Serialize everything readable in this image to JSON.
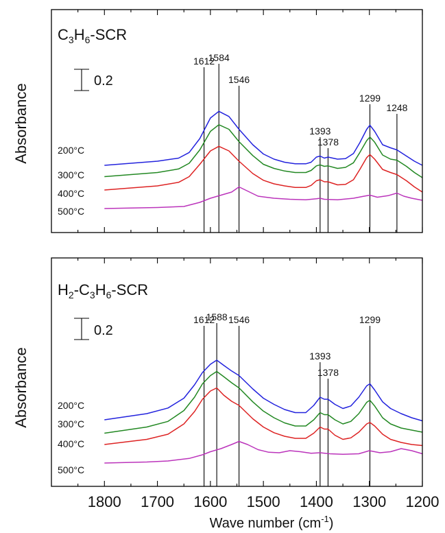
{
  "chart_data": [
    {
      "type": "line",
      "title": {
        "parts": [
          {
            "t": "C",
            "sub": false
          },
          {
            "t": "3",
            "sub": true
          },
          {
            "t": "H",
            "sub": false
          },
          {
            "t": "6",
            "sub": true
          },
          {
            "t": "-SCR",
            "sub": false
          }
        ]
      },
      "ylabel": "Absorbance",
      "scale_bar_label": "0.2",
      "xlim": [
        1900,
        1200
      ],
      "peak_labels": [
        "1612",
        "1584",
        "1546",
        "1393",
        "1378",
        "1299",
        "1248"
      ],
      "peak_positions": [
        1612,
        1584,
        1546,
        1393,
        1378,
        1299,
        1248
      ],
      "series": [
        {
          "name": "200°C",
          "color": "#2222dd",
          "x": [
            1800,
            1700,
            1660,
            1640,
            1620,
            1600,
            1584,
            1565,
            1546,
            1520,
            1500,
            1480,
            1460,
            1440,
            1420,
            1410,
            1400,
            1393,
            1385,
            1378,
            1360,
            1345,
            1330,
            1318,
            1305,
            1299,
            1290,
            1275,
            1260,
            1248,
            1230,
            1215,
            1200
          ],
          "y": [
            1.0,
            1.08,
            1.14,
            1.25,
            1.52,
            1.92,
            2.05,
            1.95,
            1.7,
            1.4,
            1.22,
            1.12,
            1.06,
            1.03,
            1.03,
            1.06,
            1.16,
            1.18,
            1.14,
            1.16,
            1.12,
            1.13,
            1.23,
            1.44,
            1.7,
            1.78,
            1.66,
            1.4,
            1.34,
            1.3,
            1.18,
            1.08,
            1.0
          ]
        },
        {
          "name": "300°C",
          "color": "#228822",
          "x": [
            1800,
            1700,
            1660,
            1640,
            1620,
            1600,
            1584,
            1565,
            1546,
            1520,
            1500,
            1480,
            1460,
            1440,
            1420,
            1410,
            1400,
            1393,
            1385,
            1378,
            1360,
            1345,
            1330,
            1318,
            1305,
            1299,
            1290,
            1275,
            1260,
            1248,
            1230,
            1215,
            1200
          ],
          "y": [
            0.78,
            0.86,
            0.93,
            1.04,
            1.3,
            1.66,
            1.79,
            1.7,
            1.46,
            1.19,
            1.02,
            0.94,
            0.89,
            0.86,
            0.86,
            0.9,
            0.99,
            1.01,
            0.98,
            0.99,
            0.94,
            0.96,
            1.05,
            1.25,
            1.48,
            1.55,
            1.45,
            1.2,
            1.12,
            1.1,
            0.98,
            0.86,
            0.76
          ]
        },
        {
          "name": "400°C",
          "color": "#dd2222",
          "x": [
            1800,
            1700,
            1660,
            1640,
            1620,
            1600,
            1584,
            1565,
            1546,
            1520,
            1500,
            1480,
            1460,
            1440,
            1420,
            1410,
            1400,
            1393,
            1385,
            1378,
            1360,
            1345,
            1330,
            1318,
            1305,
            1299,
            1290,
            1275,
            1260,
            1248,
            1230,
            1215,
            1200
          ],
          "y": [
            0.52,
            0.6,
            0.67,
            0.78,
            1.02,
            1.28,
            1.37,
            1.28,
            1.08,
            0.84,
            0.71,
            0.64,
            0.6,
            0.57,
            0.57,
            0.61,
            0.7,
            0.72,
            0.68,
            0.68,
            0.62,
            0.63,
            0.72,
            0.92,
            1.15,
            1.21,
            1.12,
            0.92,
            0.86,
            0.82,
            0.7,
            0.58,
            0.48
          ]
        },
        {
          "name": "500°C",
          "color": "#bb33bb",
          "x": [
            1800,
            1700,
            1650,
            1620,
            1600,
            1580,
            1560,
            1546,
            1530,
            1510,
            1480,
            1450,
            1420,
            1400,
            1393,
            1385,
            1360,
            1330,
            1310,
            1299,
            1285,
            1265,
            1248,
            1235,
            1220,
            1200
          ],
          "y": [
            0.16,
            0.18,
            0.2,
            0.28,
            0.36,
            0.42,
            0.48,
            0.58,
            0.5,
            0.4,
            0.36,
            0.34,
            0.33,
            0.35,
            0.36,
            0.34,
            0.33,
            0.36,
            0.4,
            0.42,
            0.38,
            0.41,
            0.46,
            0.4,
            0.36,
            0.32
          ]
        }
      ]
    },
    {
      "type": "line",
      "title": {
        "parts": [
          {
            "t": "H",
            "sub": false
          },
          {
            "t": "2",
            "sub": true
          },
          {
            "t": "-C",
            "sub": false
          },
          {
            "t": "3",
            "sub": true
          },
          {
            "t": "H",
            "sub": false
          },
          {
            "t": "6",
            "sub": true
          },
          {
            "t": "-SCR",
            "sub": false
          }
        ]
      },
      "ylabel": "Absorbance",
      "scale_bar_label": "0.2",
      "xlim": [
        1900,
        1200
      ],
      "xlabel": {
        "parts": [
          {
            "t": "Wave number (cm",
            "sup": false
          },
          {
            "t": "-1",
            "sup": true
          },
          {
            "t": ")",
            "sup": false
          }
        ]
      },
      "xticks": [
        1800,
        1700,
        1600,
        1500,
        1400,
        1300,
        1200
      ],
      "xtick_labels": [
        "1800",
        "1700",
        "1600",
        "1500",
        "1400",
        "1300",
        "1200"
      ],
      "peak_labels": [
        "1612",
        "1588",
        "1546",
        "1393",
        "1378",
        "1299"
      ],
      "peak_positions": [
        1612,
        1588,
        1546,
        1393,
        1378,
        1299
      ],
      "series": [
        {
          "name": "200°C",
          "color": "#2222dd",
          "x": [
            1800,
            1720,
            1680,
            1650,
            1630,
            1615,
            1600,
            1588,
            1575,
            1560,
            1546,
            1520,
            1500,
            1480,
            1460,
            1440,
            1420,
            1405,
            1393,
            1385,
            1378,
            1365,
            1350,
            1335,
            1320,
            1305,
            1299,
            1290,
            1275,
            1260,
            1240,
            1220,
            1200
          ],
          "y": [
            1.0,
            1.12,
            1.23,
            1.42,
            1.68,
            1.92,
            2.08,
            2.16,
            2.06,
            1.95,
            1.86,
            1.6,
            1.42,
            1.3,
            1.2,
            1.14,
            1.14,
            1.28,
            1.44,
            1.4,
            1.4,
            1.3,
            1.22,
            1.27,
            1.44,
            1.66,
            1.7,
            1.58,
            1.35,
            1.22,
            1.12,
            1.04,
            0.98
          ]
        },
        {
          "name": "300°C",
          "color": "#228822",
          "x": [
            1800,
            1720,
            1680,
            1650,
            1630,
            1615,
            1600,
            1588,
            1575,
            1560,
            1546,
            1520,
            1500,
            1480,
            1460,
            1440,
            1420,
            1405,
            1393,
            1385,
            1378,
            1365,
            1350,
            1335,
            1320,
            1305,
            1299,
            1290,
            1275,
            1260,
            1240,
            1220,
            1200
          ],
          "y": [
            0.74,
            0.86,
            0.97,
            1.18,
            1.44,
            1.7,
            1.86,
            1.94,
            1.84,
            1.72,
            1.62,
            1.35,
            1.17,
            1.04,
            0.94,
            0.88,
            0.88,
            1.0,
            1.14,
            1.1,
            1.1,
            1.0,
            0.92,
            0.97,
            1.12,
            1.34,
            1.38,
            1.27,
            1.04,
            0.92,
            0.84,
            0.8,
            0.76
          ]
        },
        {
          "name": "400°C",
          "color": "#dd2222",
          "x": [
            1800,
            1720,
            1680,
            1650,
            1630,
            1615,
            1600,
            1588,
            1575,
            1560,
            1546,
            1520,
            1500,
            1480,
            1460,
            1440,
            1420,
            1405,
            1393,
            1385,
            1378,
            1365,
            1350,
            1335,
            1320,
            1305,
            1299,
            1290,
            1275,
            1260,
            1240,
            1220,
            1200
          ],
          "y": [
            0.52,
            0.62,
            0.72,
            0.92,
            1.16,
            1.4,
            1.56,
            1.62,
            1.48,
            1.36,
            1.28,
            1.02,
            0.86,
            0.75,
            0.68,
            0.64,
            0.64,
            0.74,
            0.86,
            0.82,
            0.82,
            0.7,
            0.62,
            0.65,
            0.76,
            0.92,
            0.95,
            0.88,
            0.72,
            0.62,
            0.56,
            0.52,
            0.5
          ]
        },
        {
          "name": "500°C",
          "color": "#bb33bb",
          "x": [
            1800,
            1720,
            1680,
            1640,
            1615,
            1600,
            1580,
            1560,
            1546,
            1530,
            1510,
            1490,
            1470,
            1450,
            1430,
            1410,
            1393,
            1375,
            1350,
            1320,
            1300,
            1280,
            1260,
            1240,
            1220,
            1200
          ],
          "y": [
            0.16,
            0.18,
            0.2,
            0.25,
            0.32,
            0.38,
            0.44,
            0.52,
            0.58,
            0.52,
            0.42,
            0.37,
            0.36,
            0.4,
            0.38,
            0.35,
            0.36,
            0.34,
            0.33,
            0.34,
            0.4,
            0.36,
            0.38,
            0.44,
            0.4,
            0.34
          ]
        }
      ]
    }
  ]
}
